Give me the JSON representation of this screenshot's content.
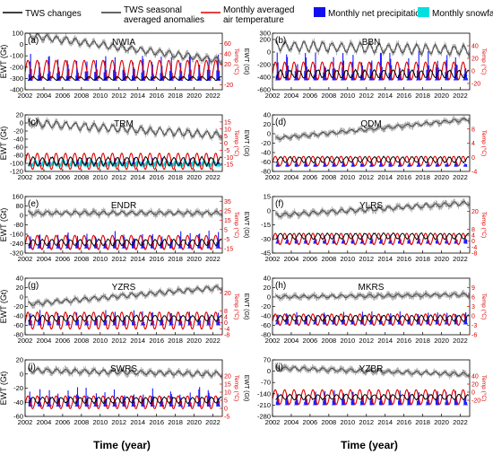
{
  "legend": {
    "items": [
      {
        "label": "TWS changes",
        "kind": "line",
        "color": "#000000"
      },
      {
        "label": "TWS seasonal averaged anomalies",
        "kind": "line",
        "color": "#333333"
      },
      {
        "label": "Monthly averaged air temperature",
        "kind": "line",
        "color": "#e00000"
      },
      {
        "label": "Monthly net precipitation",
        "kind": "patch",
        "color": "#1010ee"
      },
      {
        "label": "Monthly snowfall",
        "kind": "patch",
        "color": "#00e0e0"
      }
    ]
  },
  "colors": {
    "tws": "#444444",
    "seasonal": "#000000",
    "temp": "#e00000",
    "precip": "#1a1aff",
    "snow": "#00dede",
    "axis_right": "#e00000"
  },
  "xlabel": "Time (year)",
  "chart_data": [
    {
      "type": "line",
      "panel": "(a)",
      "title": "NWIA",
      "ylabel": "EWT (Gt)",
      "y2label": "Temp (°C)",
      "xlim": [
        2002,
        2023
      ],
      "x_ticks": [
        2002,
        2004,
        2006,
        2008,
        2010,
        2012,
        2014,
        2016,
        2018,
        2020,
        2022
      ],
      "ylim": [
        -400,
        100
      ],
      "y_ticks": [
        100,
        0,
        -100,
        -200,
        -300,
        -400
      ],
      "y2lim": [
        -30,
        80
      ],
      "y2_ticks": [
        60,
        40,
        20,
        -20
      ],
      "tws_start": 80,
      "tws_end": -140,
      "tws_amp": 25,
      "seasonal_level": -300,
      "seasonal_amp": 15,
      "temp_mid": -220,
      "temp_amp": 80,
      "precip_base": -320,
      "precip_max": 250,
      "snow": false,
      "show_xticklabels": false
    },
    {
      "type": "line",
      "panel": "(b)",
      "title": "BBN",
      "ylabel": "",
      "y2label": "Temp (°C)",
      "xlim": [
        2002,
        2023
      ],
      "x_ticks": [
        2002,
        2004,
        2006,
        2008,
        2010,
        2012,
        2014,
        2016,
        2018,
        2020,
        2022
      ],
      "ylim": [
        -600,
        300
      ],
      "y_ticks": [
        300,
        200,
        0,
        -200,
        -400,
        -600
      ],
      "y2lim": [
        -30,
        60
      ],
      "y2_ticks": [
        40,
        20,
        0,
        -20
      ],
      "tws_start": 100,
      "tws_end": 30,
      "tws_amp": 70,
      "seasonal_level": -350,
      "seasonal_amp": 60,
      "temp_mid": -300,
      "temp_amp": 140,
      "precip_base": -450,
      "precip_max": 520,
      "snow": false,
      "show_xticklabels": false
    },
    {
      "type": "line",
      "panel": "(c)",
      "title": "TRM",
      "ylabel": "EWT (Gt)",
      "y2label": "Temp (°C)",
      "xlim": [
        2002,
        2023
      ],
      "x_ticks": [
        2002,
        2004,
        2006,
        2008,
        2010,
        2012,
        2014,
        2016,
        2018,
        2020,
        2022
      ],
      "ylim": [
        -120,
        20
      ],
      "y_ticks": [
        20,
        0,
        -20,
        -40,
        -60,
        -80,
        -100,
        -120
      ],
      "y2lim": [
        -20,
        20
      ],
      "y2_ticks": [
        15,
        10,
        5,
        0,
        -5,
        -10,
        -15
      ],
      "tws_start": 0,
      "tws_end": -30,
      "tws_amp": 8,
      "seasonal_level": -95,
      "seasonal_amp": 10,
      "temp_mid": -95,
      "temp_amp": 20,
      "precip_base": -105,
      "precip_max": 20,
      "snow": true,
      "show_xticklabels": false
    },
    {
      "type": "line",
      "panel": "(d)",
      "title": "QDM",
      "ylabel": "",
      "y2label": "Temp (°C)",
      "xlim": [
        2002,
        2023
      ],
      "x_ticks": [
        2002,
        2004,
        2006,
        2008,
        2010,
        2012,
        2014,
        2016,
        2018,
        2020,
        2022
      ],
      "ylim": [
        -80,
        40
      ],
      "y_ticks": [
        40,
        20,
        0,
        -20,
        -40,
        -60,
        -80
      ],
      "y2lim": [
        -4,
        12
      ],
      "y2_ticks": [
        8,
        4,
        0,
        -4
      ],
      "tws_start": -10,
      "tws_end": 30,
      "tws_amp": 3,
      "seasonal_level": -55,
      "seasonal_amp": 6,
      "temp_mid": -58,
      "temp_amp": 10,
      "precip_base": -70,
      "precip_max": 15,
      "snow": false,
      "show_xticklabels": false
    },
    {
      "type": "line",
      "panel": "(e)",
      "title": "ENDR",
      "ylabel": "EWT (Gt)",
      "y2label": "Temp (°C)",
      "xlim": [
        2002,
        2023
      ],
      "x_ticks": [
        2002,
        2004,
        2006,
        2008,
        2010,
        2012,
        2014,
        2016,
        2018,
        2020,
        2022
      ],
      "ylim": [
        -320,
        160
      ],
      "y_ticks": [
        160,
        80,
        0,
        -80,
        -160,
        -240,
        -320
      ],
      "y2lim": [
        -20,
        40
      ],
      "y2_ticks": [
        35,
        25,
        15,
        5,
        -5,
        -15
      ],
      "tws_start": 20,
      "tws_end": 20,
      "tws_amp": 15,
      "seasonal_level": -230,
      "seasonal_amp": 25,
      "temp_mid": -230,
      "temp_amp": 60,
      "precip_base": -280,
      "precip_max": 160,
      "snow": false,
      "show_xticklabels": false
    },
    {
      "type": "line",
      "panel": "(f)",
      "title": "YLRS",
      "ylabel": "",
      "y2label": "Temp (°C)",
      "xlim": [
        2002,
        2023
      ],
      "x_ticks": [
        2002,
        2004,
        2006,
        2008,
        2010,
        2012,
        2014,
        2016,
        2018,
        2020,
        2022
      ],
      "ylim": [
        -45,
        15
      ],
      "y_ticks": [
        15,
        0,
        -15,
        -30,
        -45
      ],
      "y2lim": [
        -8,
        30
      ],
      "y2_ticks": [
        20,
        8,
        4,
        0,
        -4,
        -8
      ],
      "tws_start": -5,
      "tws_end": 8,
      "tws_amp": 2,
      "seasonal_level": -27,
      "seasonal_amp": 3,
      "temp_mid": -30,
      "temp_amp": 6,
      "precip_base": -35,
      "precip_max": 10,
      "snow": false,
      "show_xticklabels": false
    },
    {
      "type": "line",
      "panel": "(g)",
      "title": "YZRS",
      "ylabel": "EWT (Gt)",
      "y2label": "Temp (°C)",
      "xlim": [
        2002,
        2023
      ],
      "x_ticks": [
        2002,
        2004,
        2006,
        2008,
        2010,
        2012,
        2014,
        2016,
        2018,
        2020,
        2022
      ],
      "ylim": [
        -80,
        40
      ],
      "y_ticks": [
        40,
        20,
        0,
        -20,
        -40,
        -60,
        -80
      ],
      "y2lim": [
        -8,
        30
      ],
      "y2_ticks": [
        20,
        8,
        4,
        0,
        -4,
        -8
      ],
      "tws_start": -15,
      "tws_end": 20,
      "tws_amp": 4,
      "seasonal_level": -45,
      "seasonal_amp": 6,
      "temp_mid": -50,
      "temp_amp": 18,
      "precip_base": -60,
      "precip_max": 35,
      "snow": false,
      "show_xticklabels": false
    },
    {
      "type": "line",
      "panel": "(h)",
      "title": "MKRS",
      "ylabel": "",
      "y2label": "Temp (°C)",
      "xlim": [
        2002,
        2023
      ],
      "x_ticks": [
        2002,
        2004,
        2006,
        2008,
        2010,
        2012,
        2014,
        2016,
        2018,
        2020,
        2022
      ],
      "ylim": [
        -80,
        40
      ],
      "y_ticks": [
        40,
        20,
        0,
        -20,
        -40,
        -60,
        -80
      ],
      "y2lim": [
        -6,
        12
      ],
      "y2_ticks": [
        9,
        6,
        3,
        0,
        -3,
        -6
      ],
      "tws_start": 0,
      "tws_end": 5,
      "tws_amp": 3,
      "seasonal_level": -45,
      "seasonal_amp": 6,
      "temp_mid": -48,
      "temp_amp": 12,
      "precip_base": -58,
      "precip_max": 30,
      "snow": false,
      "show_xticklabels": false
    },
    {
      "type": "line",
      "panel": "(i)",
      "title": "SWRS",
      "ylabel": "EWT (Gt)",
      "y2label": "Temp (°C)",
      "xlim": [
        2002,
        2023
      ],
      "x_ticks": [
        2002,
        2004,
        2006,
        2008,
        2010,
        2012,
        2014,
        2016,
        2018,
        2020,
        2022
      ],
      "ylim": [
        -60,
        20
      ],
      "y_ticks": [
        20,
        0,
        -20,
        -40,
        -60
      ],
      "y2lim": [
        -5,
        30
      ],
      "y2_ticks": [
        20,
        15,
        10,
        5,
        0,
        -5
      ],
      "tws_start": 5,
      "tws_end": 0,
      "tws_amp": 3,
      "seasonal_level": -37,
      "seasonal_amp": 4,
      "temp_mid": -40,
      "temp_amp": 9,
      "precip_base": -46,
      "precip_max": 30,
      "snow": false,
      "show_xticklabels": true
    },
    {
      "type": "line",
      "panel": "(j)",
      "title": "YZBR",
      "ylabel": "",
      "y2label": "Temp (°C)",
      "xlim": [
        2002,
        2023
      ],
      "x_ticks": [
        2002,
        2004,
        2006,
        2008,
        2010,
        2012,
        2014,
        2016,
        2018,
        2020,
        2022
      ],
      "ylim": [
        -280,
        70
      ],
      "y_ticks": [
        70,
        0,
        -70,
        -140,
        -210,
        -280
      ],
      "y2lim": [
        -60,
        80
      ],
      "y2_ticks": [
        40,
        20,
        0,
        -20
      ],
      "tws_start": 20,
      "tws_end": -20,
      "tws_amp": 10,
      "seasonal_level": -160,
      "seasonal_amp": 15,
      "temp_mid": -160,
      "temp_amp": 45,
      "precip_base": -210,
      "precip_max": 100,
      "snow": false,
      "show_xticklabels": true
    }
  ]
}
